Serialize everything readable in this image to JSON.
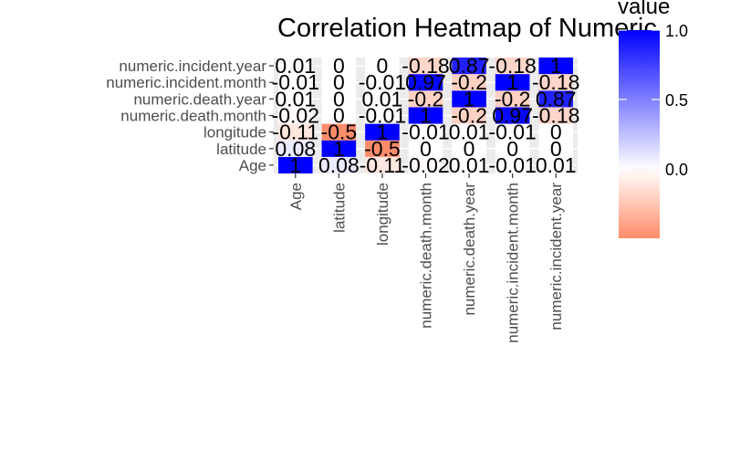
{
  "chart_data": {
    "type": "heatmap",
    "title": "Correlation Heatmap of Numeric",
    "xlabel": "",
    "ylabel": "",
    "x_categories": [
      "Age",
      "latitude",
      "longitude",
      "numeric.death.month",
      "numeric.death.year",
      "numeric.incident.month",
      "numeric.incident.year"
    ],
    "y_categories": [
      "Age",
      "latitude",
      "longitude",
      "numeric.death.month",
      "numeric.death.year",
      "numeric.incident.month",
      "numeric.incident.year"
    ],
    "values": [
      [
        1,
        0.08,
        -0.11,
        -0.02,
        0.01,
        -0.01,
        0.01
      ],
      [
        0.08,
        1,
        -0.5,
        0,
        0,
        0,
        0
      ],
      [
        -0.11,
        -0.5,
        1,
        -0.01,
        0.01,
        -0.01,
        0
      ],
      [
        -0.02,
        0,
        -0.01,
        1,
        -0.2,
        0.97,
        -0.18
      ],
      [
        0.01,
        0,
        0.01,
        -0.2,
        1,
        -0.2,
        0.87
      ],
      [
        -0.01,
        0,
        -0.01,
        0.97,
        -0.2,
        1,
        -0.18
      ],
      [
        0.01,
        0,
        0,
        -0.18,
        0.87,
        -0.18,
        1
      ]
    ],
    "cell_labels": [
      [
        "1",
        "0.08",
        "-0.11",
        "-0.02",
        "0.01",
        "-0.01",
        "0.01"
      ],
      [
        "0.08",
        "1",
        "-0.5",
        "0",
        "0",
        "0",
        "0"
      ],
      [
        "-0.11",
        "-0.5",
        "1",
        "-0.01",
        "0.01",
        "-0.01",
        "0"
      ],
      [
        "-0.02",
        "0",
        "-0.01",
        "1",
        "-0.2",
        "0.97",
        "-0.18"
      ],
      [
        "0.01",
        "0",
        "0.01",
        "-0.2",
        "1",
        "-0.2",
        "0.87"
      ],
      [
        "-0.01",
        "0",
        "-0.01",
        "0.97",
        "-0.2",
        "1",
        "-0.18"
      ],
      [
        "0.01",
        "0",
        "0",
        "-0.18",
        "0.87",
        "-0.18",
        "1"
      ]
    ],
    "legend": {
      "title": "value",
      "placement": "right",
      "tick_values": [
        0.0,
        0.5,
        1.0
      ],
      "tick_labels": [
        "0.0",
        "0.5",
        "1.0"
      ],
      "range": [
        -0.5,
        1.0
      ]
    },
    "colors": {
      "low": "#ff8c69",
      "mid": "#ffffff",
      "high": "#0000ff"
    },
    "grid": true,
    "panel_background": "#ebebeb"
  }
}
